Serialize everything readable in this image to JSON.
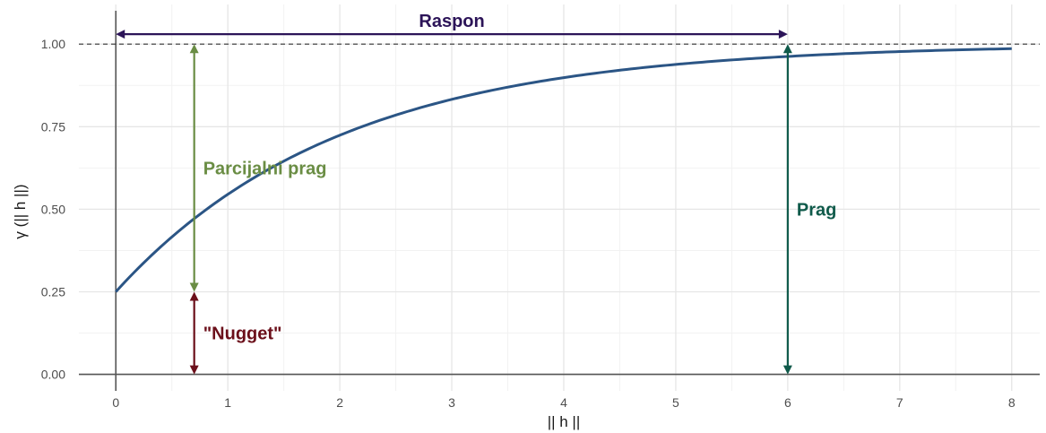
{
  "chart_data": {
    "type": "line",
    "xlabel": "|| h ||",
    "ylabel": "γ (|| h ||)",
    "xlim": [
      -0.33,
      8.25
    ],
    "ylim": [
      -0.05,
      1.12
    ],
    "x_ticks": [
      "0",
      "1",
      "2",
      "3",
      "4",
      "5",
      "6",
      "7",
      "8"
    ],
    "y_ticks": [
      "0.00",
      "0.25",
      "0.50",
      "0.75",
      "1.00"
    ],
    "grid": true,
    "series": [
      {
        "model": "exponential",
        "nugget": 0.25,
        "sill": 1.0,
        "range": 6,
        "x_max": 8,
        "color": "#2b5585"
      }
    ],
    "reference_line": {
      "y": 1.0,
      "style": "dashed",
      "color": "#333333"
    },
    "annotations": [
      {
        "label": "Raspon",
        "color": "#2c1458",
        "from": [
          0,
          1.03
        ],
        "to": [
          6,
          1.03
        ],
        "orientation": "horizontal"
      },
      {
        "label": "Parcijalni prag",
        "color": "#6a8d44",
        "from": [
          0.7,
          0.25
        ],
        "to": [
          0.7,
          1.0
        ],
        "orientation": "vertical"
      },
      {
        "label": "\"Nugget\"",
        "color": "#6b0f1a",
        "from": [
          0.7,
          0.0
        ],
        "to": [
          0.7,
          0.25
        ],
        "orientation": "vertical"
      },
      {
        "label": "Prag",
        "color": "#0f5a4a",
        "from": [
          6,
          0.0
        ],
        "to": [
          6,
          1.0
        ],
        "orientation": "vertical"
      }
    ]
  }
}
